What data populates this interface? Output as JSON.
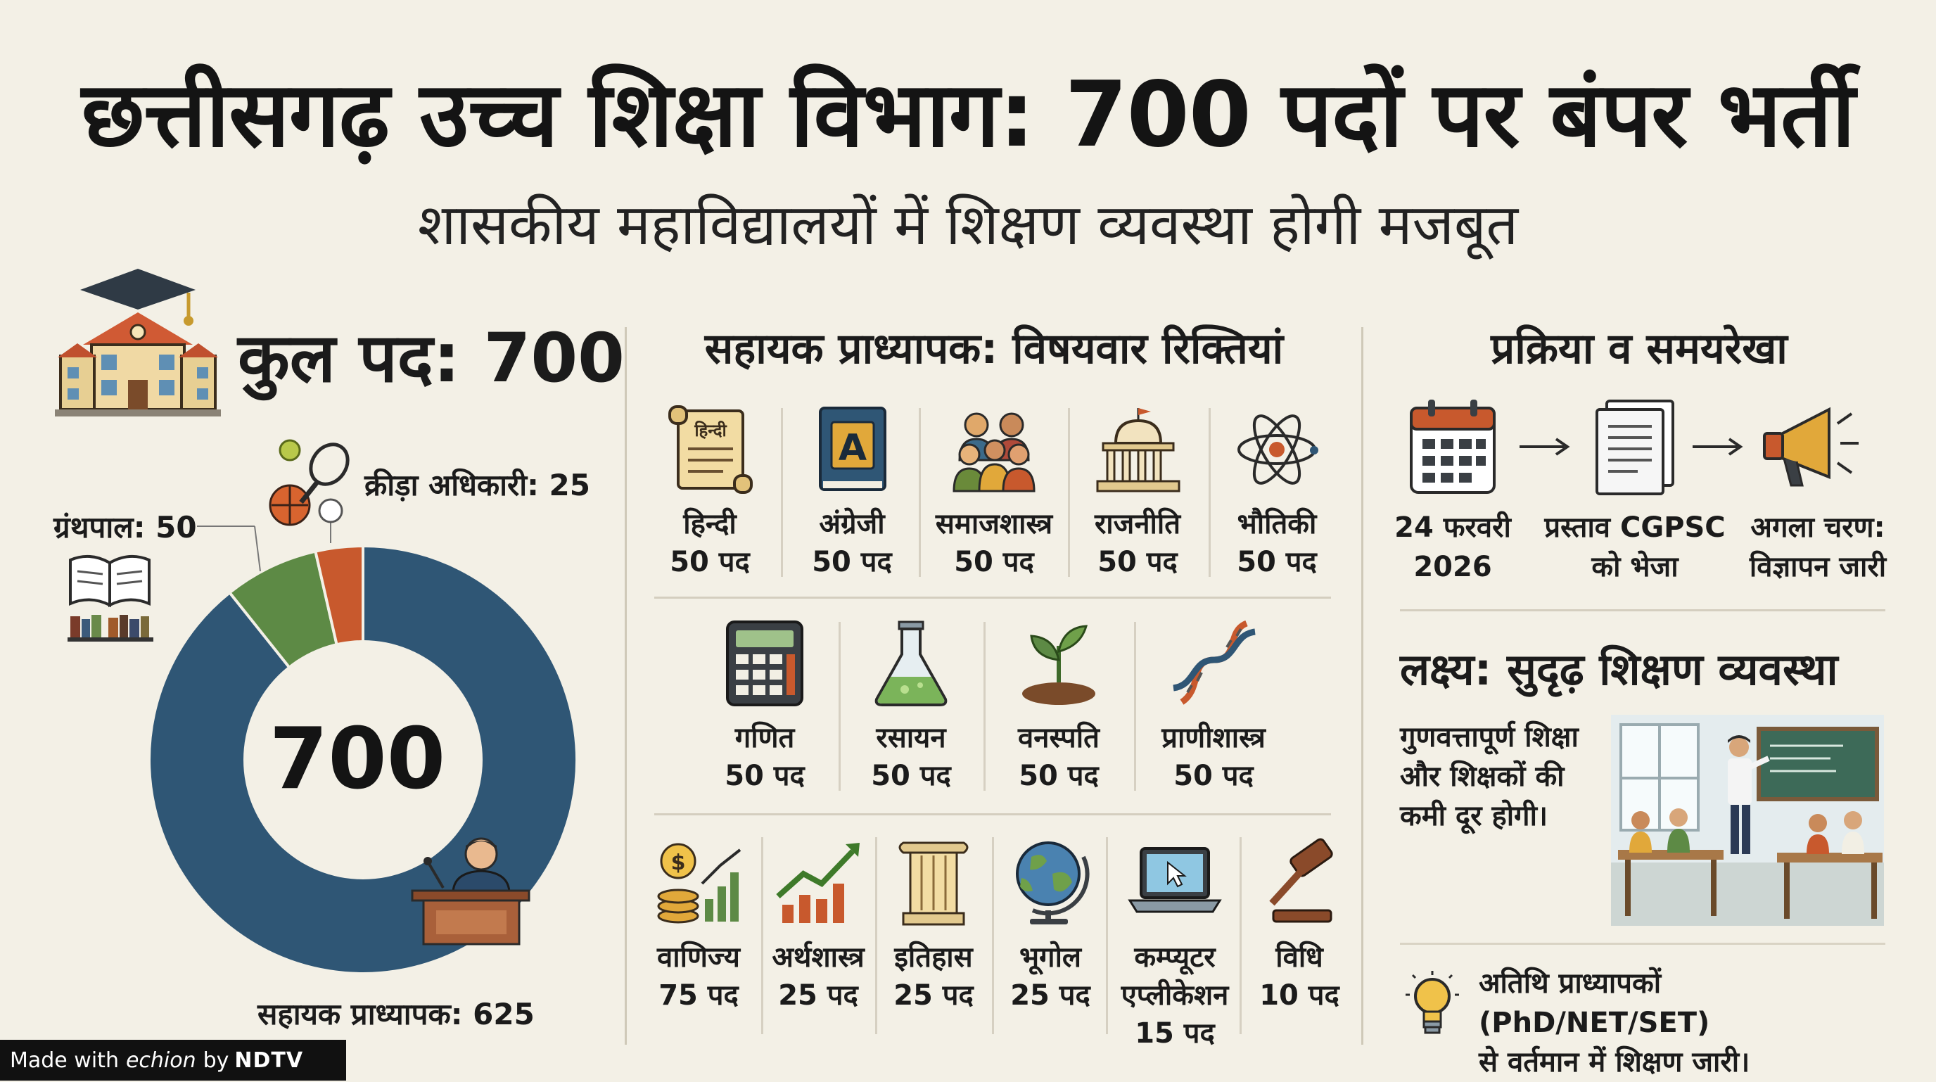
{
  "header": {
    "title": "छत्तीसगढ़ उच्च शिक्षा विभाग: 700 पदों पर बंपर भर्ती",
    "subtitle": "शासकीय महाविद्यालयों में शिक्षण व्यवस्था होगी मजबूत"
  },
  "left": {
    "total_label": "कुल पद: 700",
    "center_value": "700",
    "label_librarian": "ग्रंथपाल: 50",
    "label_sports": "क्रीड़ा अधिकारी: 25",
    "label_assistant": "सहायक प्राध्यापक: 625"
  },
  "chart_data": {
    "type": "pie",
    "title": "कुल पद: 700",
    "center_label": "700",
    "slices": [
      {
        "label": "सहायक प्राध्यापक",
        "value": 625,
        "color": "#2f5675"
      },
      {
        "label": "ग्रंथपाल",
        "value": 50,
        "color": "#5d8a45"
      },
      {
        "label": "क्रीड़ा अधिकारी",
        "value": 25,
        "color": "#c8592d"
      }
    ]
  },
  "middle": {
    "heading": "सहायक प्राध्यापक: विषयवार रिक्तियां",
    "row1": [
      {
        "name": "हिन्दी",
        "count": "50 पद",
        "icon_text": "हिन्दी"
      },
      {
        "name": "अंग्रेजी",
        "count": "50 पद",
        "icon_text": "A"
      },
      {
        "name": "समाजशास्त्र",
        "count": "50 पद"
      },
      {
        "name": "राजनीति",
        "count": "50 पद"
      },
      {
        "name": "भौतिकी",
        "count": "50 पद"
      }
    ],
    "row2": [
      {
        "name": "गणित",
        "count": "50 पद"
      },
      {
        "name": "रसायन",
        "count": "50 पद"
      },
      {
        "name": "वनस्पति",
        "count": "50 पद"
      },
      {
        "name": "प्राणीशास्त्र",
        "count": "50 पद"
      }
    ],
    "row3": [
      {
        "name": "वाणिज्य",
        "count": "75 पद"
      },
      {
        "name": "अर्थशास्त्र",
        "count": "25 पद"
      },
      {
        "name": "इतिहास",
        "count": "25 पद"
      },
      {
        "name": "भूगोल",
        "count": "25 पद"
      },
      {
        "name": "कम्प्यूटर",
        "name2": "एप्लीकेशन",
        "count": "15 पद"
      },
      {
        "name": "विधि",
        "count": "10 पद"
      }
    ]
  },
  "right": {
    "heading": "प्रक्रिया व समयरेखा",
    "step1_line1": "24 फरवरी",
    "step1_line2": "2026",
    "step2_line1": "प्रस्ताव CGPSC",
    "step2_line2": "को भेजा",
    "step3_line1": "अगला चरण:",
    "step3_line2": "विज्ञापन जारी",
    "goal_heading": "लक्ष्य: सुदृढ़ शिक्षण व्यवस्था",
    "goal_line1": "गुणवत्तापूर्ण शिक्षा",
    "goal_line2": "और शिक्षकों की",
    "goal_line3": "कमी दूर होगी।",
    "note_line1": "अतिथि प्राध्यापकों (PhD/NET/SET)",
    "note_line2": "से वर्तमान में शिक्षण जारी।"
  },
  "footer": {
    "made_with": "Made with",
    "brand": "echion",
    "by": "by",
    "org": "NDTV"
  }
}
